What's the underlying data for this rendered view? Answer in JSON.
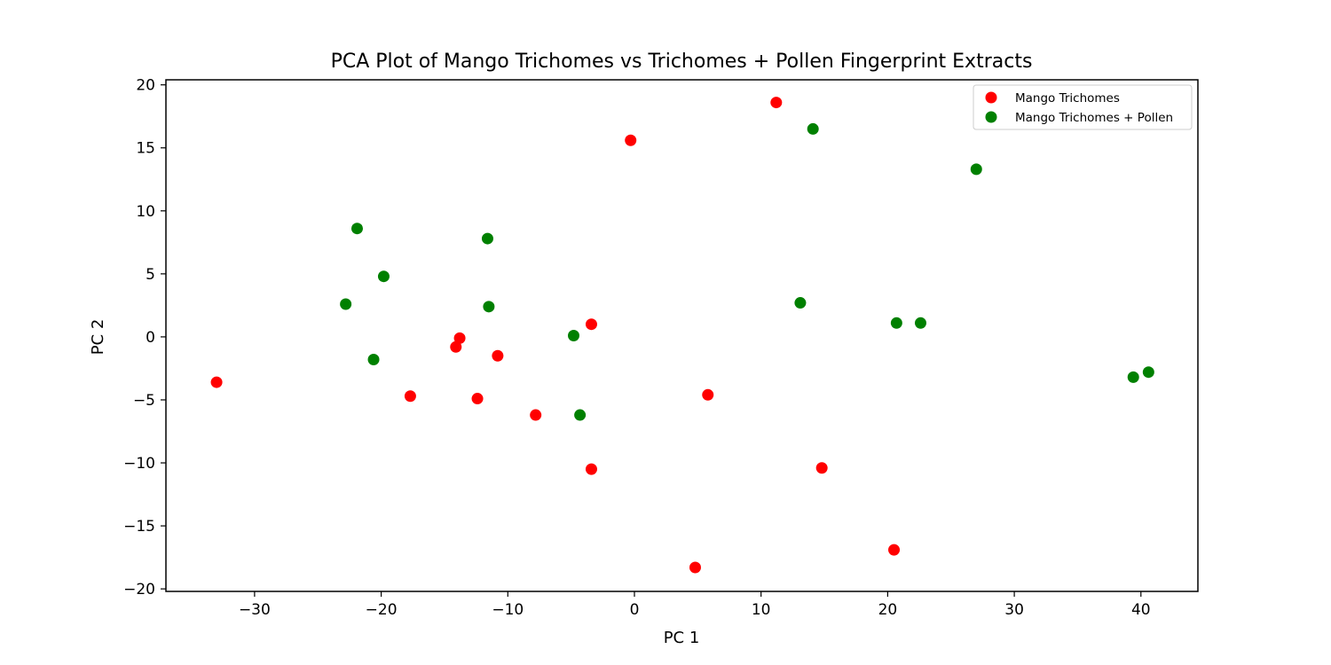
{
  "chart_data": {
    "type": "scatter",
    "title": "PCA Plot of Mango Trichomes vs Trichomes + Pollen Fingerprint Extracts",
    "xlabel": "PC 1",
    "ylabel": "PC 2",
    "xlim": [
      -37,
      44.5
    ],
    "ylim": [
      -20.2,
      20.4
    ],
    "xticks": [
      -30,
      -20,
      -10,
      0,
      10,
      20,
      30,
      40
    ],
    "yticks": [
      -20,
      -15,
      -10,
      -5,
      0,
      5,
      10,
      15,
      20
    ],
    "xtick_labels": [
      "−30",
      "−20",
      "−10",
      "0",
      "10",
      "20",
      "30",
      "40"
    ],
    "ytick_labels": [
      "−20",
      "−15",
      "−10",
      "−5",
      "0",
      "5",
      "10",
      "15",
      "20"
    ],
    "grid": false,
    "legend_position": "top-right",
    "series": [
      {
        "name": "Mango Trichomes",
        "color": "#ff0000",
        "points": [
          [
            -33.0,
            -3.6
          ],
          [
            -17.7,
            -4.7
          ],
          [
            -14.1,
            -0.8
          ],
          [
            -13.8,
            -0.1
          ],
          [
            -12.4,
            -4.9
          ],
          [
            -10.8,
            -1.5
          ],
          [
            -7.8,
            -6.2
          ],
          [
            -3.4,
            1.0
          ],
          [
            -3.4,
            -10.5
          ],
          [
            -0.3,
            15.6
          ],
          [
            4.8,
            -18.3
          ],
          [
            5.8,
            -4.6
          ],
          [
            11.2,
            18.6
          ],
          [
            14.8,
            -10.4
          ],
          [
            20.5,
            -16.9
          ]
        ]
      },
      {
        "name": "Mango Trichomes + Pollen",
        "color": "#008000",
        "points": [
          [
            -22.8,
            2.6
          ],
          [
            -21.9,
            8.6
          ],
          [
            -20.6,
            -1.8
          ],
          [
            -19.8,
            4.8
          ],
          [
            -11.6,
            7.8
          ],
          [
            -11.5,
            2.4
          ],
          [
            -4.8,
            0.1
          ],
          [
            -4.3,
            -6.2
          ],
          [
            13.1,
            2.7
          ],
          [
            14.1,
            16.5
          ],
          [
            20.7,
            1.1
          ],
          [
            22.6,
            1.1
          ],
          [
            27.0,
            13.3
          ],
          [
            39.4,
            -3.2
          ],
          [
            40.6,
            -2.8
          ]
        ]
      }
    ]
  }
}
